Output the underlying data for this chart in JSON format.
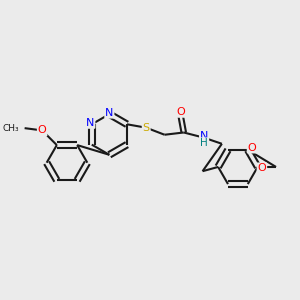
{
  "bg_color": "#ebebeb",
  "bond_color": "#1a1a1a",
  "atom_colors": {
    "N": "#0000ff",
    "O": "#ff0000",
    "S": "#ccaa00",
    "NH": "#008080",
    "C": "#1a1a1a"
  },
  "lw": 1.5,
  "figsize": [
    3.0,
    3.0
  ],
  "dpi": 100
}
